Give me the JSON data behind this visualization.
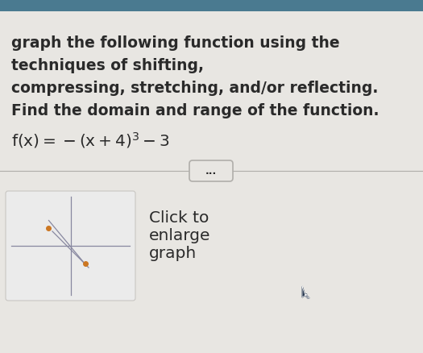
{
  "bg_color_top": "#4a7a90",
  "bg_color_main": "#e8e6e2",
  "text_color": "#2a2a2a",
  "line1": "graph the following function using the",
  "line2": "techniques of shifting,",
  "line3": "compressing, stretching, and/or reflecting.",
  "line4": "Find the domain and range of the function.",
  "divider_color": "#b0aeaa",
  "dots_text": "...",
  "click_line1": "Click to",
  "click_line2": "enlarge",
  "click_line3": "graph",
  "thumbnail_bg": "#ebebeb",
  "thumbnail_border": "#c8c6c2",
  "curve_color": "#cc7722",
  "axis_color": "#8888a0",
  "dot_color": "#cc7722",
  "cursor_color": "#2a3a50",
  "font_size_main": 13.5,
  "font_size_formula": 13.5,
  "font_size_click": 14.5,
  "fig_width": 5.25,
  "fig_height": 4.38,
  "dpi": 100
}
